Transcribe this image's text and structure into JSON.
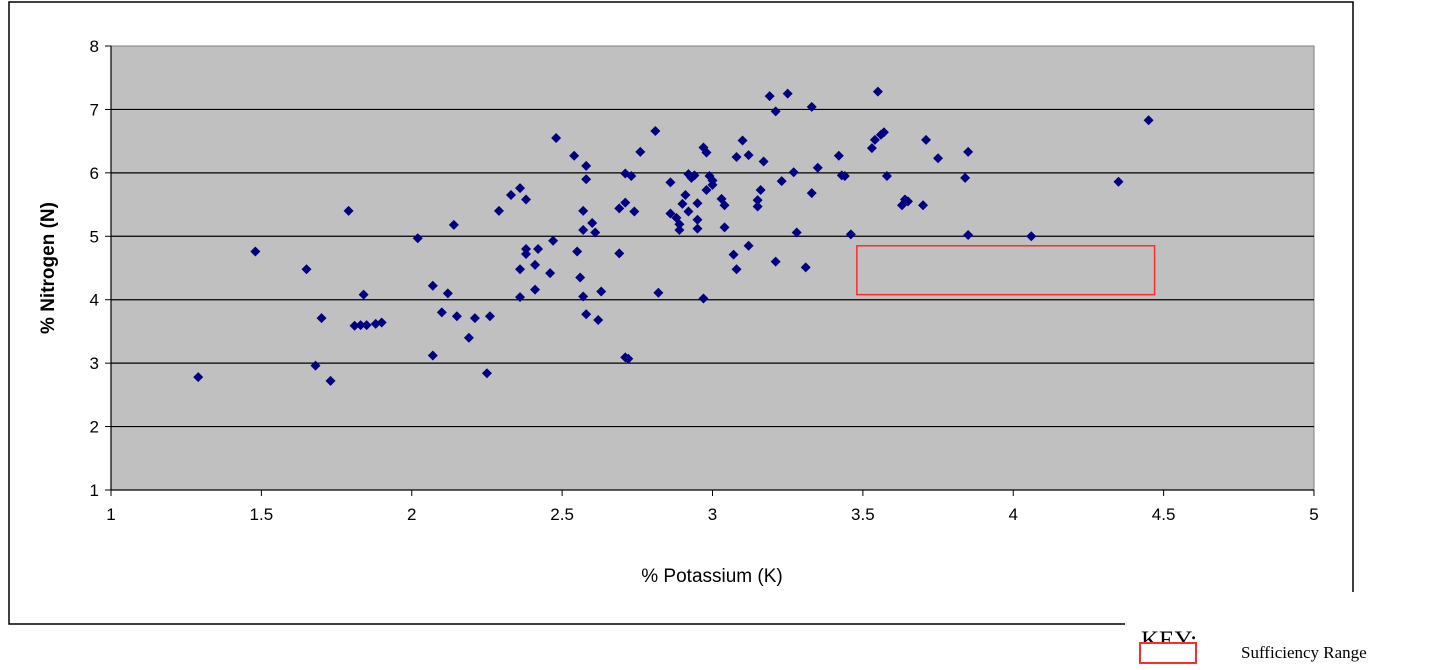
{
  "chart_data": {
    "type": "scatter",
    "xlabel": "% Potassium (K)",
    "ylabel": "% Nitrogen (N)",
    "xlim": [
      1,
      5
    ],
    "ylim": [
      1,
      8
    ],
    "xticks": [
      "1",
      "1.5",
      "2",
      "2.5",
      "3",
      "3.5",
      "4",
      "4.5",
      "5"
    ],
    "yticks": [
      "1",
      "2",
      "3",
      "4",
      "5",
      "6",
      "7",
      "8"
    ],
    "grid": "horizontal",
    "plot_background": "#c0c0c0",
    "marker_color": "#000080",
    "points": [
      [
        1.29,
        2.78
      ],
      [
        1.48,
        4.76
      ],
      [
        1.65,
        4.48
      ],
      [
        1.68,
        2.96
      ],
      [
        1.7,
        3.71
      ],
      [
        1.73,
        2.72
      ],
      [
        1.79,
        5.4
      ],
      [
        1.81,
        3.59
      ],
      [
        1.83,
        3.6
      ],
      [
        1.84,
        4.08
      ],
      [
        1.85,
        3.6
      ],
      [
        1.88,
        3.62
      ],
      [
        1.9,
        3.64
      ],
      [
        2.02,
        4.97
      ],
      [
        2.07,
        3.12
      ],
      [
        2.07,
        4.22
      ],
      [
        2.1,
        3.8
      ],
      [
        2.12,
        4.1
      ],
      [
        2.14,
        5.18
      ],
      [
        2.15,
        3.74
      ],
      [
        2.19,
        3.4
      ],
      [
        2.21,
        3.71
      ],
      [
        2.25,
        2.84
      ],
      [
        2.26,
        3.74
      ],
      [
        2.29,
        5.4
      ],
      [
        2.33,
        5.65
      ],
      [
        2.36,
        5.76
      ],
      [
        2.36,
        4.48
      ],
      [
        2.36,
        4.04
      ],
      [
        2.38,
        5.58
      ],
      [
        2.38,
        4.8
      ],
      [
        2.38,
        4.72
      ],
      [
        2.41,
        4.55
      ],
      [
        2.41,
        4.16
      ],
      [
        2.42,
        4.8
      ],
      [
        2.46,
        4.42
      ],
      [
        2.47,
        4.93
      ],
      [
        2.48,
        6.55
      ],
      [
        2.54,
        6.27
      ],
      [
        2.55,
        4.76
      ],
      [
        2.56,
        4.35
      ],
      [
        2.57,
        5.4
      ],
      [
        2.57,
        5.1
      ],
      [
        2.57,
        4.05
      ],
      [
        2.58,
        6.11
      ],
      [
        2.58,
        5.9
      ],
      [
        2.58,
        3.77
      ],
      [
        2.6,
        5.21
      ],
      [
        2.61,
        5.06
      ],
      [
        2.62,
        3.68
      ],
      [
        2.63,
        4.13
      ],
      [
        2.69,
        5.44
      ],
      [
        2.69,
        4.73
      ],
      [
        2.71,
        5.99
      ],
      [
        2.71,
        5.53
      ],
      [
        2.71,
        3.09
      ],
      [
        2.72,
        3.07
      ],
      [
        2.73,
        5.95
      ],
      [
        2.74,
        5.39
      ],
      [
        2.76,
        6.33
      ],
      [
        2.81,
        6.66
      ],
      [
        2.82,
        4.11
      ],
      [
        2.86,
        5.85
      ],
      [
        2.86,
        5.36
      ],
      [
        2.88,
        5.29
      ],
      [
        2.89,
        5.19
      ],
      [
        2.89,
        5.1
      ],
      [
        2.9,
        5.51
      ],
      [
        2.91,
        5.65
      ],
      [
        2.92,
        5.98
      ],
      [
        2.92,
        5.39
      ],
      [
        2.93,
        5.92
      ],
      [
        2.94,
        5.96
      ],
      [
        2.95,
        5.52
      ],
      [
        2.95,
        5.26
      ],
      [
        2.95,
        5.12
      ],
      [
        2.97,
        6.4
      ],
      [
        2.97,
        4.02
      ],
      [
        2.98,
        6.32
      ],
      [
        2.98,
        5.73
      ],
      [
        2.99,
        5.95
      ],
      [
        3.0,
        5.81
      ],
      [
        3.0,
        5.88
      ],
      [
        3.03,
        5.59
      ],
      [
        3.04,
        5.49
      ],
      [
        3.04,
        5.14
      ],
      [
        3.07,
        4.71
      ],
      [
        3.08,
        6.25
      ],
      [
        3.08,
        4.48
      ],
      [
        3.1,
        6.51
      ],
      [
        3.12,
        6.28
      ],
      [
        3.12,
        4.85
      ],
      [
        3.15,
        5.57
      ],
      [
        3.15,
        5.47
      ],
      [
        3.16,
        5.73
      ],
      [
        3.17,
        6.18
      ],
      [
        3.19,
        7.21
      ],
      [
        3.21,
        6.97
      ],
      [
        3.21,
        4.6
      ],
      [
        3.23,
        5.87
      ],
      [
        3.25,
        7.25
      ],
      [
        3.27,
        6.01
      ],
      [
        3.28,
        5.06
      ],
      [
        3.31,
        4.51
      ],
      [
        3.33,
        7.04
      ],
      [
        3.33,
        5.68
      ],
      [
        3.35,
        6.08
      ],
      [
        3.42,
        6.27
      ],
      [
        3.43,
        5.96
      ],
      [
        3.44,
        5.95
      ],
      [
        3.46,
        5.03
      ],
      [
        3.53,
        6.39
      ],
      [
        3.54,
        6.52
      ],
      [
        3.55,
        7.28
      ],
      [
        3.56,
        6.6
      ],
      [
        3.57,
        6.64
      ],
      [
        3.58,
        5.95
      ],
      [
        3.63,
        5.49
      ],
      [
        3.64,
        5.58
      ],
      [
        3.65,
        5.55
      ],
      [
        3.7,
        5.49
      ],
      [
        3.71,
        6.52
      ],
      [
        3.75,
        6.23
      ],
      [
        3.84,
        5.92
      ],
      [
        3.85,
        6.33
      ],
      [
        3.85,
        5.02
      ],
      [
        4.06,
        5.0
      ],
      [
        4.35,
        5.86
      ],
      [
        4.45,
        6.83
      ]
    ],
    "sufficiency_range": {
      "x": [
        3.48,
        4.47
      ],
      "y": [
        4.08,
        4.85
      ],
      "color": "#ff2a2a"
    },
    "legend": {
      "title": "KEY:",
      "entries": [
        {
          "label": "Sufficiency Range",
          "color": "#ff2a2a"
        }
      ],
      "placement": "bottom-right"
    }
  }
}
